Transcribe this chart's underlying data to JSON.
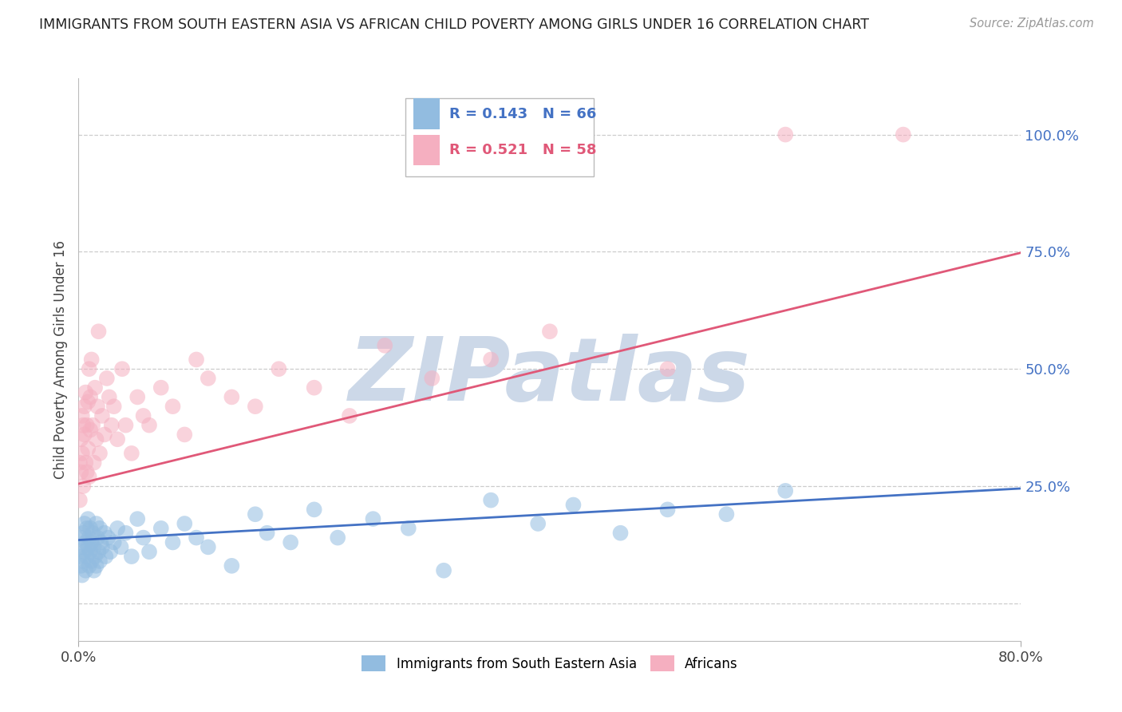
{
  "title": "IMMIGRANTS FROM SOUTH EASTERN ASIA VS AFRICAN CHILD POVERTY AMONG GIRLS UNDER 16 CORRELATION CHART",
  "source": "Source: ZipAtlas.com",
  "ylabel": "Child Poverty Among Girls Under 16",
  "xlim": [
    0.0,
    0.8
  ],
  "ylim": [
    -0.08,
    1.12
  ],
  "ytick_positions": [
    0.0,
    0.25,
    0.5,
    0.75,
    1.0
  ],
  "ytick_labels": [
    "",
    "25.0%",
    "50.0%",
    "75.0%",
    "100.0%"
  ],
  "legend_r1": "R = 0.143",
  "legend_n1": "N = 66",
  "legend_r2": "R = 0.521",
  "legend_n2": "N = 58",
  "blue_color": "#92bce0",
  "pink_color": "#f5afc0",
  "blue_line_color": "#4472c4",
  "pink_line_color": "#e05878",
  "title_color": "#222222",
  "source_color": "#999999",
  "watermark_color": "#ccd8e8",
  "blue_scatter_x": [
    0.001,
    0.002,
    0.002,
    0.003,
    0.003,
    0.004,
    0.004,
    0.005,
    0.005,
    0.006,
    0.006,
    0.007,
    0.007,
    0.008,
    0.008,
    0.009,
    0.009,
    0.01,
    0.01,
    0.011,
    0.011,
    0.012,
    0.013,
    0.013,
    0.014,
    0.015,
    0.015,
    0.016,
    0.017,
    0.018,
    0.018,
    0.019,
    0.02,
    0.022,
    0.023,
    0.025,
    0.027,
    0.03,
    0.033,
    0.036,
    0.04,
    0.045,
    0.05,
    0.055,
    0.06,
    0.07,
    0.08,
    0.09,
    0.1,
    0.11,
    0.13,
    0.15,
    0.16,
    0.18,
    0.2,
    0.22,
    0.25,
    0.28,
    0.31,
    0.35,
    0.39,
    0.42,
    0.46,
    0.5,
    0.55,
    0.6
  ],
  "blue_scatter_y": [
    0.1,
    0.08,
    0.14,
    0.12,
    0.06,
    0.15,
    0.09,
    0.17,
    0.11,
    0.13,
    0.07,
    0.16,
    0.1,
    0.18,
    0.12,
    0.08,
    0.14,
    0.11,
    0.16,
    0.09,
    0.13,
    0.15,
    0.07,
    0.12,
    0.1,
    0.17,
    0.08,
    0.14,
    0.11,
    0.16,
    0.09,
    0.13,
    0.12,
    0.15,
    0.1,
    0.14,
    0.11,
    0.13,
    0.16,
    0.12,
    0.15,
    0.1,
    0.18,
    0.14,
    0.11,
    0.16,
    0.13,
    0.17,
    0.14,
    0.12,
    0.08,
    0.19,
    0.15,
    0.13,
    0.2,
    0.14,
    0.18,
    0.16,
    0.07,
    0.22,
    0.17,
    0.21,
    0.15,
    0.2,
    0.19,
    0.24
  ],
  "pink_scatter_x": [
    0.001,
    0.001,
    0.002,
    0.002,
    0.003,
    0.003,
    0.004,
    0.004,
    0.005,
    0.005,
    0.006,
    0.006,
    0.007,
    0.007,
    0.008,
    0.008,
    0.009,
    0.009,
    0.01,
    0.01,
    0.011,
    0.012,
    0.013,
    0.014,
    0.015,
    0.016,
    0.017,
    0.018,
    0.02,
    0.022,
    0.024,
    0.026,
    0.028,
    0.03,
    0.033,
    0.037,
    0.04,
    0.045,
    0.05,
    0.055,
    0.06,
    0.07,
    0.08,
    0.09,
    0.1,
    0.11,
    0.13,
    0.15,
    0.17,
    0.2,
    0.23,
    0.26,
    0.3,
    0.35,
    0.4,
    0.5,
    0.6,
    0.7
  ],
  "pink_scatter_y": [
    0.22,
    0.3,
    0.28,
    0.35,
    0.32,
    0.4,
    0.38,
    0.25,
    0.42,
    0.36,
    0.3,
    0.45,
    0.38,
    0.28,
    0.43,
    0.33,
    0.5,
    0.27,
    0.37,
    0.44,
    0.52,
    0.38,
    0.3,
    0.46,
    0.35,
    0.42,
    0.58,
    0.32,
    0.4,
    0.36,
    0.48,
    0.44,
    0.38,
    0.42,
    0.35,
    0.5,
    0.38,
    0.32,
    0.44,
    0.4,
    0.38,
    0.46,
    0.42,
    0.36,
    0.52,
    0.48,
    0.44,
    0.42,
    0.5,
    0.46,
    0.4,
    0.55,
    0.48,
    0.52,
    0.58,
    0.5,
    1.0,
    1.0
  ],
  "blue_trend_x": [
    0.0,
    0.8
  ],
  "blue_trend_y": [
    0.135,
    0.245
  ],
  "pink_trend_x": [
    0.0,
    0.8
  ],
  "pink_trend_y": [
    0.255,
    0.748
  ]
}
